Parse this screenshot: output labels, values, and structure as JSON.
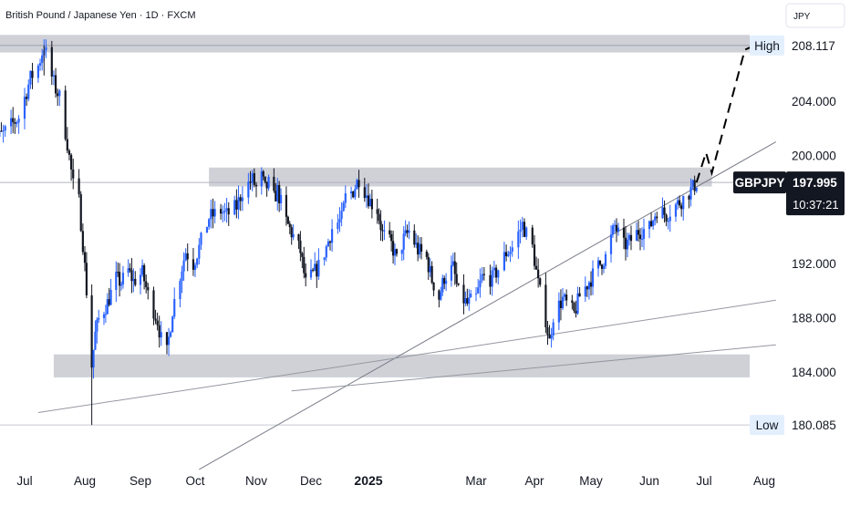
{
  "header": {
    "title": "British Pound / Japanese Yen · 1D · FXCM",
    "currency": "JPY"
  },
  "chart_data": {
    "type": "candlestick",
    "symbol": "GBPJPY",
    "ylim": [
      176.5,
      210.5
    ],
    "y_ticks": [
      {
        "value": 204,
        "label": "204.000"
      },
      {
        "value": 200,
        "label": "200.000"
      },
      {
        "value": 192,
        "label": "192.000"
      },
      {
        "value": 188,
        "label": "188.000"
      },
      {
        "value": 184,
        "label": "184.000"
      }
    ],
    "x_ticks": [
      {
        "label": "Jul",
        "date": "2024-07-01",
        "bold": false
      },
      {
        "label": "Aug",
        "date": "2024-08-01",
        "bold": false
      },
      {
        "label": "Sep",
        "date": "2024-09-02",
        "bold": false
      },
      {
        "label": "Oct",
        "date": "2024-10-01",
        "bold": false
      },
      {
        "label": "Nov",
        "date": "2024-11-01",
        "bold": false
      },
      {
        "label": "Dec",
        "date": "2024-12-02",
        "bold": false
      },
      {
        "label": "2025",
        "date": "2025-01-01",
        "bold": true
      },
      {
        "label": "Mar",
        "date": "2025-03-03",
        "bold": false
      },
      {
        "label": "Apr",
        "date": "2025-04-01",
        "bold": false
      },
      {
        "label": "May",
        "date": "2025-05-01",
        "bold": false
      },
      {
        "label": "Jun",
        "date": "2025-06-02",
        "bold": false
      },
      {
        "label": "Jul",
        "date": "2025-07-01",
        "bold": false
      },
      {
        "label": "Aug",
        "date": "2025-08-01",
        "bold": false
      }
    ],
    "series": [
      {
        "kind": "close-path",
        "points": [
          [
            "2024-06-12",
            200.8
          ],
          [
            "2024-06-20",
            201.6
          ],
          [
            "2024-06-28",
            202.8
          ],
          [
            "2024-07-04",
            205.7
          ],
          [
            "2024-07-08",
            206.6
          ],
          [
            "2024-07-11",
            208.1
          ],
          [
            "2024-07-15",
            205.8
          ],
          [
            "2024-07-17",
            204.9
          ],
          [
            "2024-07-19",
            204.3
          ],
          [
            "2024-07-23",
            200.9
          ],
          [
            "2024-07-26",
            197.8
          ],
          [
            "2024-07-29",
            196.6
          ],
          [
            "2024-07-31",
            193.5
          ],
          [
            "2024-08-02",
            190.0
          ],
          [
            "2024-08-05",
            184.5
          ],
          [
            "2024-08-07",
            186.8
          ],
          [
            "2024-08-09",
            187.9
          ],
          [
            "2024-08-14",
            189.1
          ],
          [
            "2024-08-19",
            190.9
          ],
          [
            "2024-08-22",
            190.6
          ],
          [
            "2024-08-26",
            191.5
          ],
          [
            "2024-08-29",
            190.7
          ],
          [
            "2024-09-03",
            191.3
          ],
          [
            "2024-09-06",
            189.7
          ],
          [
            "2024-09-11",
            187.8
          ],
          [
            "2024-09-13",
            186.4
          ],
          [
            "2024-09-16",
            185.4
          ],
          [
            "2024-09-19",
            188.6
          ],
          [
            "2024-09-23",
            191.2
          ],
          [
            "2024-09-26",
            192.9
          ],
          [
            "2024-09-30",
            192.0
          ],
          [
            "2024-10-03",
            193.2
          ],
          [
            "2024-10-08",
            195.4
          ],
          [
            "2024-10-14",
            195.9
          ],
          [
            "2024-10-17",
            195.6
          ],
          [
            "2024-10-22",
            196.2
          ],
          [
            "2024-10-25",
            197.4
          ],
          [
            "2024-10-30",
            198.2
          ],
          [
            "2024-11-01",
            197.6
          ],
          [
            "2024-11-04",
            198.4
          ],
          [
            "2024-11-06",
            197.5
          ],
          [
            "2024-11-08",
            197.9
          ],
          [
            "2024-11-11",
            196.8
          ],
          [
            "2024-11-13",
            197.4
          ],
          [
            "2024-11-18",
            195.1
          ],
          [
            "2024-11-22",
            194.0
          ],
          [
            "2024-11-26",
            192.9
          ],
          [
            "2024-11-29",
            190.5
          ],
          [
            "2024-12-03",
            191.2
          ],
          [
            "2024-12-06",
            191.8
          ],
          [
            "2024-12-10",
            193.2
          ],
          [
            "2024-12-13",
            194.6
          ],
          [
            "2024-12-18",
            195.3
          ],
          [
            "2024-12-20",
            196.9
          ],
          [
            "2024-12-24",
            197.4
          ],
          [
            "2024-12-27",
            198.3
          ],
          [
            "2025-01-02",
            196.6
          ],
          [
            "2025-01-06",
            196.0
          ],
          [
            "2025-01-09",
            194.2
          ],
          [
            "2025-01-14",
            193.4
          ],
          [
            "2025-01-17",
            192.3
          ],
          [
            "2025-01-21",
            193.8
          ],
          [
            "2025-01-24",
            194.4
          ],
          [
            "2025-01-29",
            193.0
          ],
          [
            "2025-02-03",
            192.4
          ],
          [
            "2025-02-06",
            190.8
          ],
          [
            "2025-02-10",
            189.5
          ],
          [
            "2025-02-13",
            191.0
          ],
          [
            "2025-02-18",
            191.7
          ],
          [
            "2025-02-21",
            189.8
          ],
          [
            "2025-02-26",
            189.0
          ],
          [
            "2025-03-03",
            189.5
          ],
          [
            "2025-03-06",
            191.0
          ],
          [
            "2025-03-11",
            190.9
          ],
          [
            "2025-03-14",
            191.6
          ],
          [
            "2025-03-18",
            192.8
          ],
          [
            "2025-03-21",
            193.2
          ],
          [
            "2025-03-26",
            194.9
          ],
          [
            "2025-03-31",
            193.2
          ],
          [
            "2025-04-03",
            190.5
          ],
          [
            "2025-04-07",
            187.9
          ],
          [
            "2025-04-09",
            186.2
          ],
          [
            "2025-04-11",
            188.2
          ],
          [
            "2025-04-16",
            189.4
          ],
          [
            "2025-04-22",
            188.3
          ],
          [
            "2025-04-25",
            189.6
          ],
          [
            "2025-04-30",
            190.7
          ],
          [
            "2025-05-05",
            191.8
          ],
          [
            "2025-05-09",
            192.5
          ],
          [
            "2025-05-14",
            194.8
          ],
          [
            "2025-05-19",
            193.3
          ],
          [
            "2025-05-22",
            193.6
          ],
          [
            "2025-05-27",
            194.4
          ],
          [
            "2025-06-02",
            194.6
          ],
          [
            "2025-06-06",
            196.0
          ],
          [
            "2025-06-11",
            195.6
          ],
          [
            "2025-06-16",
            196.3
          ],
          [
            "2025-06-20",
            196.8
          ],
          [
            "2025-06-25",
            197.6
          ],
          [
            "2025-06-27",
            197.995
          ]
        ],
        "color_up": "#2962ff",
        "color_down": "#131722"
      },
      {
        "kind": "projection-dashed",
        "points": [
          [
            "2025-06-27",
            197.995
          ],
          [
            "2025-07-02",
            200.2
          ],
          [
            "2025-07-05",
            198.7
          ],
          [
            "2025-07-22",
            207.8
          ],
          [
            "2025-07-27",
            208.117
          ]
        ],
        "color": "#000000"
      }
    ],
    "zones": [
      {
        "name": "resistance-top-zone",
        "from_date": "2024-06-01",
        "to_date": "2025-08-07",
        "from_price": 207.6,
        "to_price": 208.9,
        "color": "#b2b5be"
      },
      {
        "name": "resistance-mid-zone",
        "from_date": "2024-10-08",
        "to_date": "2025-07-05",
        "from_price": 197.7,
        "to_price": 199.1,
        "color": "#b2b5be"
      },
      {
        "name": "support-zone",
        "from_date": "2024-07-16",
        "to_date": "2025-08-07",
        "from_price": 183.6,
        "to_price": 185.3,
        "color": "#b2b5be"
      }
    ],
    "trendlines": [
      {
        "name": "trendline-steep",
        "from": [
          "2024-10-03",
          176.8
        ],
        "to": [
          "2025-08-07",
          201.0
        ],
        "color": "#787b86"
      },
      {
        "name": "trendline-lower",
        "from": [
          "2024-07-08",
          181.0
        ],
        "to": [
          "2025-08-07",
          189.3
        ],
        "color": "#9598a1"
      },
      {
        "name": "trendline-base",
        "from": [
          "2024-11-21",
          182.6
        ],
        "to": [
          "2025-08-07",
          186.0
        ],
        "color": "#9598a1"
      }
    ],
    "markers": [
      {
        "label": "High",
        "value": 208.117,
        "value_label": "208.117",
        "bg": "#e3effd"
      },
      {
        "label": "Low",
        "value": 180.085,
        "value_label": "180.085",
        "bg": "#e3effd"
      }
    ],
    "current": {
      "symbol": "GBPJPY",
      "value": 197.995,
      "value_label": "197.995",
      "countdown": "10:37:21",
      "bg": "#131722"
    }
  }
}
